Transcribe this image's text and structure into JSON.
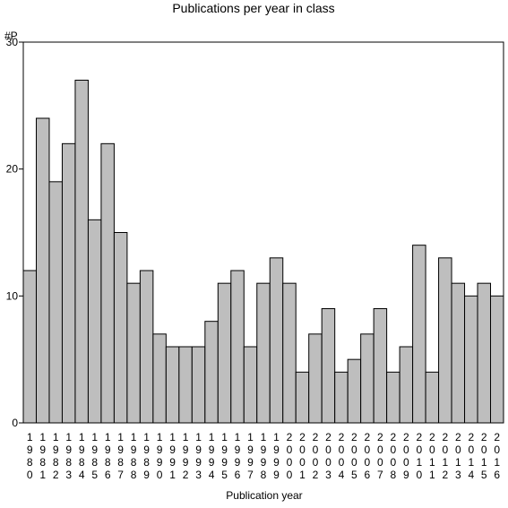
{
  "chart_data": {
    "type": "bar",
    "title": "Publications per year in class",
    "ylabel": "#P",
    "xlabel": "Publication year",
    "categories": [
      "1980",
      "1981",
      "1982",
      "1983",
      "1984",
      "1985",
      "1986",
      "1987",
      "1988",
      "1989",
      "1990",
      "1991",
      "1992",
      "1993",
      "1994",
      "1995",
      "1996",
      "1997",
      "1998",
      "1999",
      "2000",
      "2001",
      "2002",
      "2003",
      "2004",
      "2005",
      "2006",
      "2007",
      "2008",
      "2009",
      "2010",
      "2011",
      "2012",
      "2013",
      "2014",
      "2015",
      "2016"
    ],
    "values": [
      12,
      24,
      19,
      22,
      27,
      16,
      22,
      15,
      11,
      12,
      7,
      6,
      6,
      6,
      8,
      11,
      12,
      6,
      11,
      13,
      11,
      4,
      7,
      9,
      4,
      5,
      7,
      9,
      4,
      6,
      14,
      4,
      13,
      11,
      10,
      11,
      10
    ],
    "ylim": [
      0,
      30
    ],
    "yticks": [
      0,
      10,
      20,
      30
    ],
    "grid": false,
    "colors": {
      "bar_fill": "#bebebe",
      "bar_stroke": "#000000"
    }
  }
}
